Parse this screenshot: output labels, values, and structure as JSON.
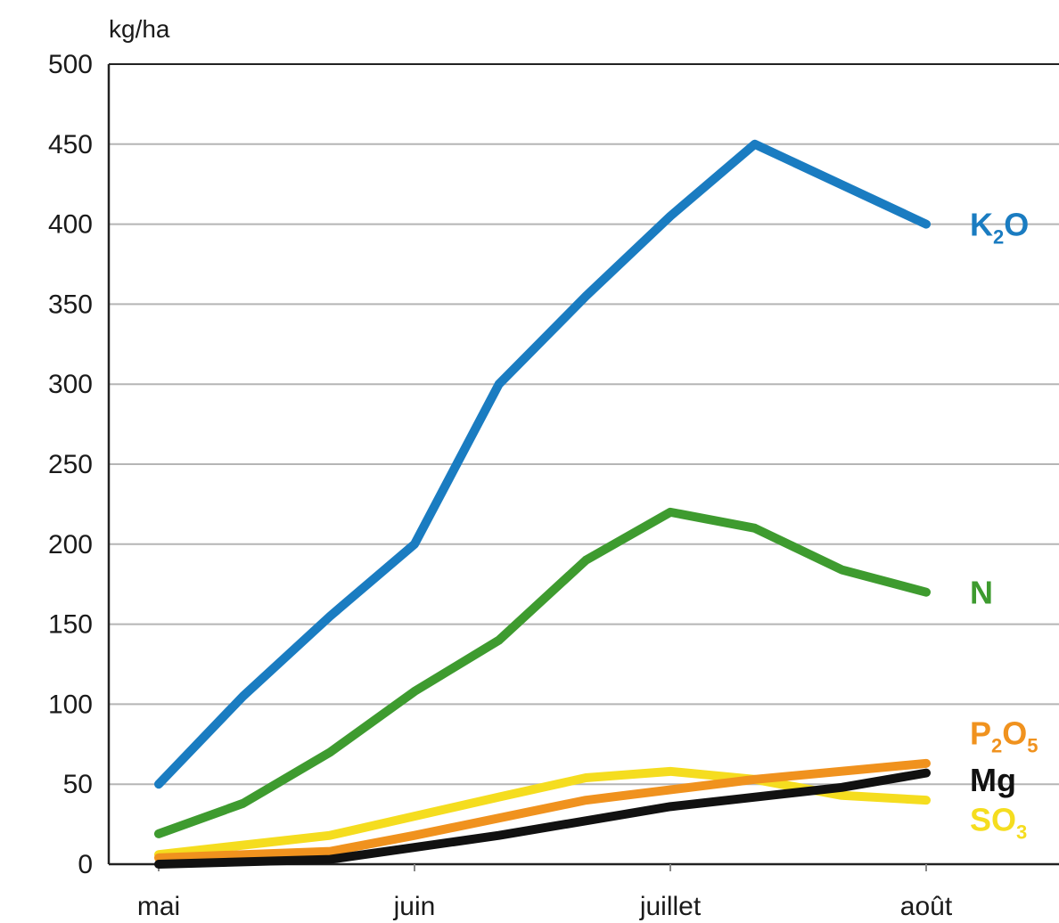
{
  "chart_data": {
    "type": "line",
    "unit_label": "kg/ha",
    "ylim": [
      0,
      500
    ],
    "y_ticks": [
      "0",
      "50",
      "100",
      "150",
      "200",
      "250",
      "300",
      "350",
      "400",
      "450",
      "500"
    ],
    "y_tick_values": [
      0,
      50,
      100,
      150,
      200,
      250,
      300,
      350,
      400,
      450,
      500
    ],
    "x_month_labels": [
      {
        "label": "mai",
        "x": 0
      },
      {
        "label": "juin",
        "x": 1
      },
      {
        "label": "juillet",
        "x": 2
      },
      {
        "label": "août",
        "x": 3
      }
    ],
    "xlim": [
      0,
      3.25
    ],
    "grid": true,
    "series": [
      {
        "name": "K₂O",
        "label_parts": [
          [
            "K",
            false
          ],
          [
            "2",
            true
          ],
          [
            "O",
            false
          ]
        ],
        "color": "#1a7cc1",
        "points": [
          [
            0,
            50
          ],
          [
            0.33,
            105
          ],
          [
            0.67,
            155
          ],
          [
            1,
            200
          ],
          [
            1.33,
            300
          ],
          [
            1.67,
            355
          ],
          [
            2,
            405
          ],
          [
            2.33,
            450
          ],
          [
            3,
            400
          ]
        ]
      },
      {
        "name": "N",
        "label_parts": [
          [
            "N",
            false
          ]
        ],
        "color": "#3e9b2f",
        "points": [
          [
            0,
            19
          ],
          [
            0.33,
            38
          ],
          [
            0.67,
            70
          ],
          [
            1,
            108
          ],
          [
            1.33,
            140
          ],
          [
            1.67,
            190
          ],
          [
            2,
            220
          ],
          [
            2.33,
            210
          ],
          [
            2.67,
            184
          ],
          [
            3,
            170
          ]
        ]
      },
      {
        "name": "P₂O₅",
        "label_parts": [
          [
            "P",
            false
          ],
          [
            "2",
            true
          ],
          [
            "O",
            false
          ],
          [
            "5",
            true
          ]
        ],
        "color": "#f0921e",
        "points": [
          [
            0,
            4
          ],
          [
            0.67,
            8
          ],
          [
            1,
            18
          ],
          [
            1.67,
            40
          ],
          [
            2.33,
            53
          ],
          [
            3,
            63
          ]
        ]
      },
      {
        "name": "Mg",
        "label_parts": [
          [
            "Mg",
            false
          ]
        ],
        "color": "#111111",
        "points": [
          [
            0,
            0
          ],
          [
            0.67,
            3
          ],
          [
            1.33,
            18
          ],
          [
            2,
            36
          ],
          [
            2.67,
            48
          ],
          [
            3,
            57
          ]
        ]
      },
      {
        "name": "SO₃",
        "label_parts": [
          [
            "SO",
            false
          ],
          [
            "3",
            true
          ]
        ],
        "color": "#f5dd1f",
        "points": [
          [
            0,
            6
          ],
          [
            0.67,
            18
          ],
          [
            1.33,
            42
          ],
          [
            1.67,
            54
          ],
          [
            2,
            58
          ],
          [
            2.33,
            53
          ],
          [
            2.67,
            43
          ],
          [
            3,
            40
          ]
        ]
      }
    ]
  }
}
